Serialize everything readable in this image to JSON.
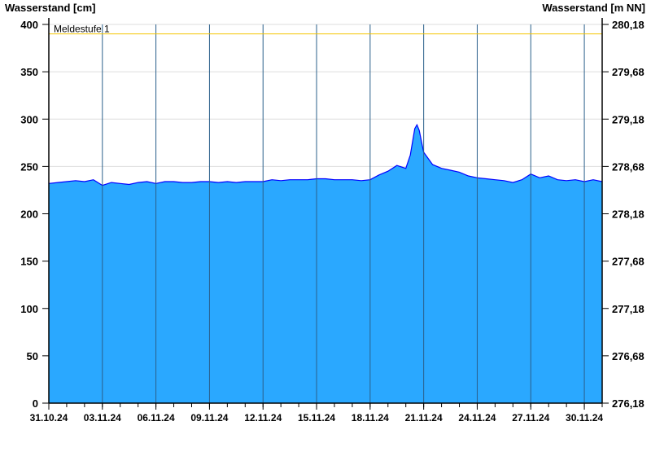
{
  "chart_data": {
    "type": "area",
    "ylabel_left": "Wasserstand [cm]",
    "ylabel_right": "Wasserstand [m NN]",
    "ylim": [
      0,
      400
    ],
    "yticks_left": [
      "0",
      "50",
      "100",
      "150",
      "200",
      "250",
      "300",
      "350",
      "400"
    ],
    "yticks_right": [
      "276,18",
      "276,68",
      "277,18",
      "277,68",
      "278,18",
      "278,68",
      "279,18",
      "279,68",
      "280,18"
    ],
    "xlim": [
      "2024-10-31T00:00",
      "2024-12-01T00:00"
    ],
    "xticks": [
      "31.10.24",
      "03.11.24",
      "06.11.24",
      "09.11.24",
      "12.11.24",
      "15.11.24",
      "18.11.24",
      "21.11.24",
      "24.11.24",
      "27.11.24",
      "30.11.24"
    ],
    "grid": true,
    "threshold": {
      "label": "Meldestufe 1",
      "value": 390,
      "color": "#f5c400"
    },
    "colors": {
      "fill": "#2aa8ff",
      "line": "#0000ff"
    },
    "series": [
      [
        "2024-10-31T00:00",
        232
      ],
      [
        "2024-10-31T12:00",
        233
      ],
      [
        "2024-11-01T00:00",
        234
      ],
      [
        "2024-11-01T12:00",
        235
      ],
      [
        "2024-11-02T00:00",
        234
      ],
      [
        "2024-11-02T12:00",
        236
      ],
      [
        "2024-11-03T00:00",
        230
      ],
      [
        "2024-11-03T12:00",
        233
      ],
      [
        "2024-11-04T00:00",
        232
      ],
      [
        "2024-11-04T12:00",
        231
      ],
      [
        "2024-11-05T00:00",
        233
      ],
      [
        "2024-11-05T12:00",
        234
      ],
      [
        "2024-11-06T00:00",
        232
      ],
      [
        "2024-11-06T12:00",
        234
      ],
      [
        "2024-11-07T00:00",
        234
      ],
      [
        "2024-11-07T12:00",
        233
      ],
      [
        "2024-11-08T00:00",
        233
      ],
      [
        "2024-11-08T12:00",
        234
      ],
      [
        "2024-11-09T00:00",
        234
      ],
      [
        "2024-11-09T12:00",
        233
      ],
      [
        "2024-11-10T00:00",
        234
      ],
      [
        "2024-11-10T12:00",
        233
      ],
      [
        "2024-11-11T00:00",
        234
      ],
      [
        "2024-11-11T12:00",
        234
      ],
      [
        "2024-11-12T00:00",
        234
      ],
      [
        "2024-11-12T12:00",
        236
      ],
      [
        "2024-11-13T00:00",
        235
      ],
      [
        "2024-11-13T12:00",
        236
      ],
      [
        "2024-11-14T00:00",
        236
      ],
      [
        "2024-11-14T12:00",
        236
      ],
      [
        "2024-11-15T00:00",
        237
      ],
      [
        "2024-11-15T12:00",
        237
      ],
      [
        "2024-11-16T00:00",
        236
      ],
      [
        "2024-11-16T12:00",
        236
      ],
      [
        "2024-11-17T00:00",
        236
      ],
      [
        "2024-11-17T12:00",
        235
      ],
      [
        "2024-11-18T00:00",
        236
      ],
      [
        "2024-11-18T12:00",
        241
      ],
      [
        "2024-11-19T00:00",
        245
      ],
      [
        "2024-11-19T12:00",
        251
      ],
      [
        "2024-11-20T00:00",
        248
      ],
      [
        "2024-11-20T06:00",
        262
      ],
      [
        "2024-11-20T12:00",
        290
      ],
      [
        "2024-11-20T15:00",
        294
      ],
      [
        "2024-11-20T18:00",
        288
      ],
      [
        "2024-11-21T00:00",
        265
      ],
      [
        "2024-11-21T12:00",
        252
      ],
      [
        "2024-11-22T00:00",
        248
      ],
      [
        "2024-11-22T12:00",
        246
      ],
      [
        "2024-11-23T00:00",
        244
      ],
      [
        "2024-11-23T12:00",
        240
      ],
      [
        "2024-11-24T00:00",
        238
      ],
      [
        "2024-11-24T12:00",
        237
      ],
      [
        "2024-11-25T00:00",
        236
      ],
      [
        "2024-11-25T12:00",
        235
      ],
      [
        "2024-11-26T00:00",
        233
      ],
      [
        "2024-11-26T12:00",
        236
      ],
      [
        "2024-11-27T00:00",
        242
      ],
      [
        "2024-11-27T12:00",
        238
      ],
      [
        "2024-11-28T00:00",
        240
      ],
      [
        "2024-11-28T12:00",
        236
      ],
      [
        "2024-11-29T00:00",
        235
      ],
      [
        "2024-11-29T12:00",
        236
      ],
      [
        "2024-11-30T00:00",
        234
      ],
      [
        "2024-11-30T12:00",
        236
      ],
      [
        "2024-12-01T00:00",
        234
      ]
    ]
  }
}
